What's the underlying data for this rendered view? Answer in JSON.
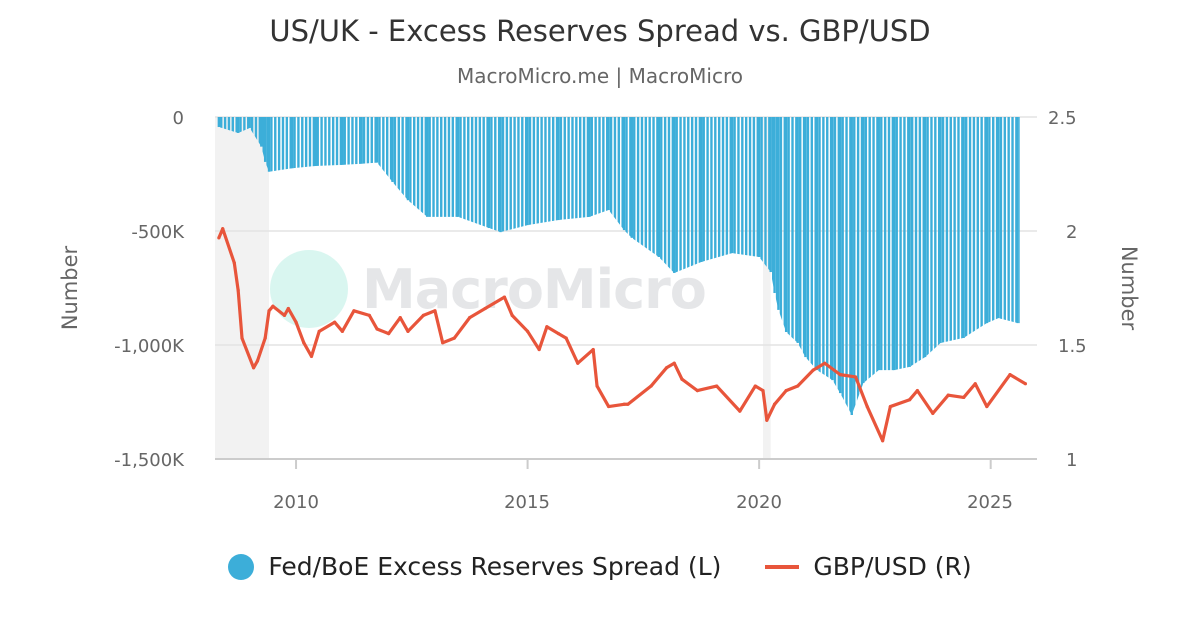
{
  "chart_data": {
    "type": "bar+line",
    "title": "US/UK - Excess Reserves Spread vs. GBP/USD",
    "subtitle": "MacroMicro.me | MacroMicro",
    "watermark": "MacroMicro",
    "x_ticks": [
      "2010",
      "2015",
      "2020",
      "2025"
    ],
    "xlim": [
      "2008-04",
      "2026-01"
    ],
    "left_axis": {
      "label": "Number",
      "ticks": [
        "0",
        "-500K",
        "-1,000K",
        "-1,500K"
      ],
      "ylim": [
        -1500000,
        0
      ]
    },
    "right_axis": {
      "label": "Number",
      "ticks": [
        "2.5",
        "2",
        "1.5",
        "1"
      ],
      "ylim": [
        1,
        2.5
      ]
    },
    "grid": true,
    "legend_position": "bottom",
    "shaded_periods": [
      [
        "2008-04",
        "2009-06"
      ],
      [
        "2020-02",
        "2020-04"
      ]
    ],
    "series": [
      {
        "name": "Fed/BoE Excess Reserves Spread (L)",
        "type": "bar",
        "axis": "left",
        "color": "#3caed9",
        "x": [
          "2008-05",
          "2008-10",
          "2009-01",
          "2009-04",
          "2009-05",
          "2009-06",
          "2009-12",
          "2010-06",
          "2011-01",
          "2011-06",
          "2011-10",
          "2012-02",
          "2012-06",
          "2012-11",
          "2013-07",
          "2014-03",
          "2014-06",
          "2015-01",
          "2015-09",
          "2016-05",
          "2016-10",
          "2017-02",
          "2017-04",
          "2017-11",
          "2018-03",
          "2018-10",
          "2019-06",
          "2020-01",
          "2020-04",
          "2020-05",
          "2020-06",
          "2020-08",
          "2020-11",
          "2021-01",
          "2021-04",
          "2021-08",
          "2021-10",
          "2022-01",
          "2022-04",
          "2022-08",
          "2022-12",
          "2023-04",
          "2023-08",
          "2023-12",
          "2024-06",
          "2024-12",
          "2025-03",
          "2025-08"
        ],
        "values": [
          -44000,
          -70000,
          -48000,
          -130000,
          -197000,
          -240000,
          -225000,
          -215000,
          -210000,
          -205000,
          -200000,
          -285000,
          -365000,
          -438000,
          -438000,
          -487000,
          -505000,
          -474000,
          -452000,
          -438000,
          -408000,
          -496000,
          -530000,
          -614000,
          -684000,
          -636000,
          -597000,
          -614000,
          -680000,
          -772000,
          -846000,
          -943000,
          -991000,
          -1053000,
          -1110000,
          -1154000,
          -1211000,
          -1307000,
          -1167000,
          -1110000,
          -1110000,
          -1096000,
          -1053000,
          -991000,
          -969000,
          -904000,
          -882000,
          -904000
        ]
      },
      {
        "name": "GBP/USD (R)",
        "type": "line",
        "axis": "right",
        "color": "#e8553b",
        "x": [
          "2008-05",
          "2008-06",
          "2008-09",
          "2008-10",
          "2008-11",
          "2009-02",
          "2009-03",
          "2009-05",
          "2009-06",
          "2009-07",
          "2009-10",
          "2009-11",
          "2010-01",
          "2010-03",
          "2010-05",
          "2010-07",
          "2010-11",
          "2011-01",
          "2011-04",
          "2011-08",
          "2011-10",
          "2012-01",
          "2012-04",
          "2012-06",
          "2012-10",
          "2013-01",
          "2013-03",
          "2013-06",
          "2013-10",
          "2014-02",
          "2014-07",
          "2014-09",
          "2015-01",
          "2015-04",
          "2015-06",
          "2015-09",
          "2015-11",
          "2016-02",
          "2016-06",
          "2016-07",
          "2016-10",
          "2017-02",
          "2017-03",
          "2017-09",
          "2018-01",
          "2018-03",
          "2018-05",
          "2018-09",
          "2019-02",
          "2019-08",
          "2019-12",
          "2020-02",
          "2020-03",
          "2020-05",
          "2020-08",
          "2020-11",
          "2021-03",
          "2021-06",
          "2021-10",
          "2022-02",
          "2022-05",
          "2022-09",
          "2022-11",
          "2023-04",
          "2023-06",
          "2023-10",
          "2024-02",
          "2024-06",
          "2024-09",
          "2024-12",
          "2025-06",
          "2025-10"
        ],
        "values": [
          1.97,
          2.01,
          1.86,
          1.74,
          1.53,
          1.4,
          1.43,
          1.53,
          1.65,
          1.67,
          1.63,
          1.66,
          1.6,
          1.51,
          1.45,
          1.56,
          1.6,
          1.56,
          1.65,
          1.63,
          1.57,
          1.55,
          1.62,
          1.56,
          1.63,
          1.65,
          1.51,
          1.53,
          1.62,
          1.66,
          1.71,
          1.63,
          1.56,
          1.48,
          1.58,
          1.55,
          1.53,
          1.42,
          1.48,
          1.32,
          1.23,
          1.24,
          1.24,
          1.32,
          1.4,
          1.42,
          1.35,
          1.3,
          1.32,
          1.21,
          1.32,
          1.3,
          1.17,
          1.24,
          1.3,
          1.32,
          1.39,
          1.42,
          1.37,
          1.36,
          1.23,
          1.08,
          1.23,
          1.26,
          1.3,
          1.2,
          1.28,
          1.27,
          1.33,
          1.23,
          1.37,
          1.33
        ]
      }
    ]
  }
}
